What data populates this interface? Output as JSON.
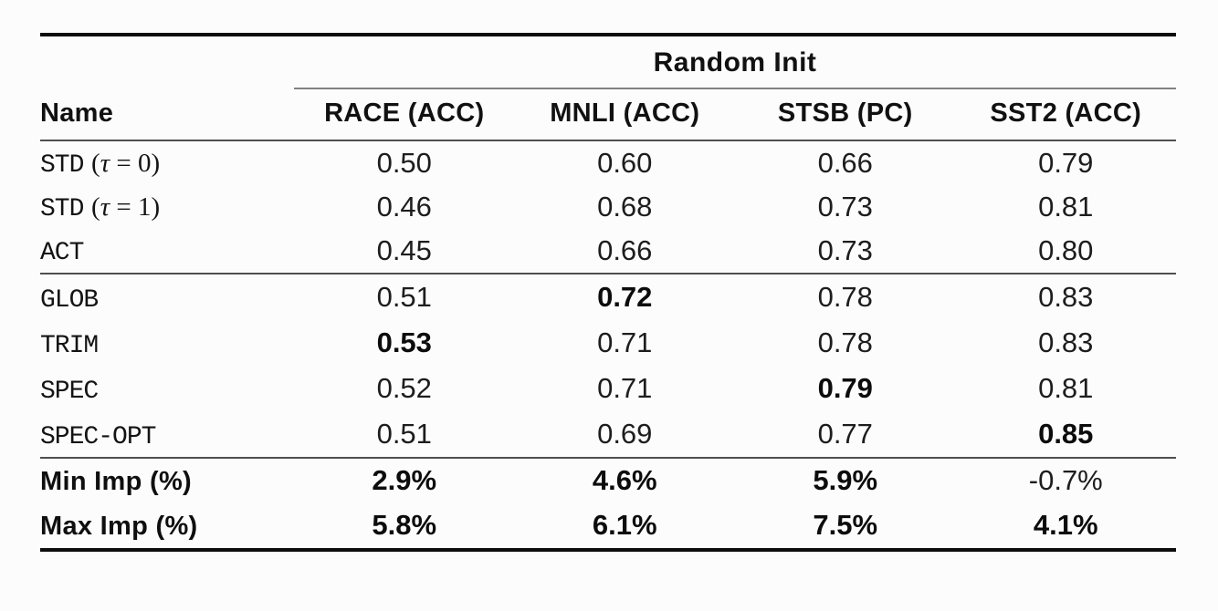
{
  "table": {
    "group_header": "Random Init",
    "name_header": "Name",
    "columns": [
      "RACE (ACC)",
      "MNLI (ACC)",
      "STSB (PC)",
      "SST2 (ACC)"
    ],
    "sections": [
      {
        "rows": [
          {
            "label_mono": "STD",
            "label_math": "(τ = 0)",
            "values": [
              "0.50",
              "0.60",
              "0.66",
              "0.79"
            ],
            "bold": [
              false,
              false,
              false,
              false
            ]
          },
          {
            "label_mono": "STD",
            "label_math": "(τ = 1)",
            "values": [
              "0.46",
              "0.68",
              "0.73",
              "0.81"
            ],
            "bold": [
              false,
              false,
              false,
              false
            ]
          },
          {
            "label_mono": "ACT",
            "label_math": "",
            "values": [
              "0.45",
              "0.66",
              "0.73",
              "0.80"
            ],
            "bold": [
              false,
              false,
              false,
              false
            ]
          }
        ]
      },
      {
        "rows": [
          {
            "label_mono": "GLOB",
            "label_math": "",
            "values": [
              "0.51",
              "0.72",
              "0.78",
              "0.83"
            ],
            "bold": [
              false,
              true,
              false,
              false
            ]
          },
          {
            "label_mono": "TRIM",
            "label_math": "",
            "values": [
              "0.53",
              "0.71",
              "0.78",
              "0.83"
            ],
            "bold": [
              true,
              false,
              false,
              false
            ]
          },
          {
            "label_mono": "SPEC",
            "label_math": "",
            "values": [
              "0.52",
              "0.71",
              "0.79",
              "0.81"
            ],
            "bold": [
              false,
              false,
              true,
              false
            ]
          },
          {
            "label_mono": "SPEC-OPT",
            "label_math": "",
            "values": [
              "0.51",
              "0.69",
              "0.77",
              "0.85"
            ],
            "bold": [
              false,
              false,
              false,
              true
            ]
          }
        ]
      },
      {
        "rows": [
          {
            "label_bold": "Min Imp (%)",
            "values": [
              "2.9%",
              "4.6%",
              "5.9%",
              "-0.7%"
            ],
            "bold": [
              true,
              true,
              true,
              false
            ]
          },
          {
            "label_bold": "Max Imp (%)",
            "values": [
              "5.8%",
              "6.1%",
              "7.5%",
              "4.1%"
            ],
            "bold": [
              true,
              true,
              true,
              true
            ]
          }
        ]
      }
    ]
  },
  "chart_data": {
    "type": "table",
    "title": "Random Init",
    "columns": [
      "Name",
      "RACE (ACC)",
      "MNLI (ACC)",
      "STSB (PC)",
      "SST2 (ACC)"
    ],
    "rows": [
      [
        "STD (τ = 0)",
        0.5,
        0.6,
        0.66,
        0.79
      ],
      [
        "STD (τ = 1)",
        0.46,
        0.68,
        0.73,
        0.81
      ],
      [
        "ACT",
        0.45,
        0.66,
        0.73,
        0.8
      ],
      [
        "GLOB",
        0.51,
        0.72,
        0.78,
        0.83
      ],
      [
        "TRIM",
        0.53,
        0.71,
        0.78,
        0.83
      ],
      [
        "SPEC",
        0.52,
        0.71,
        0.79,
        0.81
      ],
      [
        "SPEC-OPT",
        0.51,
        0.69,
        0.77,
        0.85
      ],
      [
        "Min Imp (%)",
        "2.9%",
        "4.6%",
        "5.9%",
        "-0.7%"
      ],
      [
        "Max Imp (%)",
        "5.8%",
        "6.1%",
        "7.5%",
        "4.1%"
      ]
    ],
    "bold_cells_note": "best per column in bold: RACE TRIM 0.53, MNLI GLOB 0.72, STSB SPEC 0.79, SST2 SPEC-OPT 0.85; Min Imp bold except SST2 (-0.7%); Max Imp all bold"
  }
}
